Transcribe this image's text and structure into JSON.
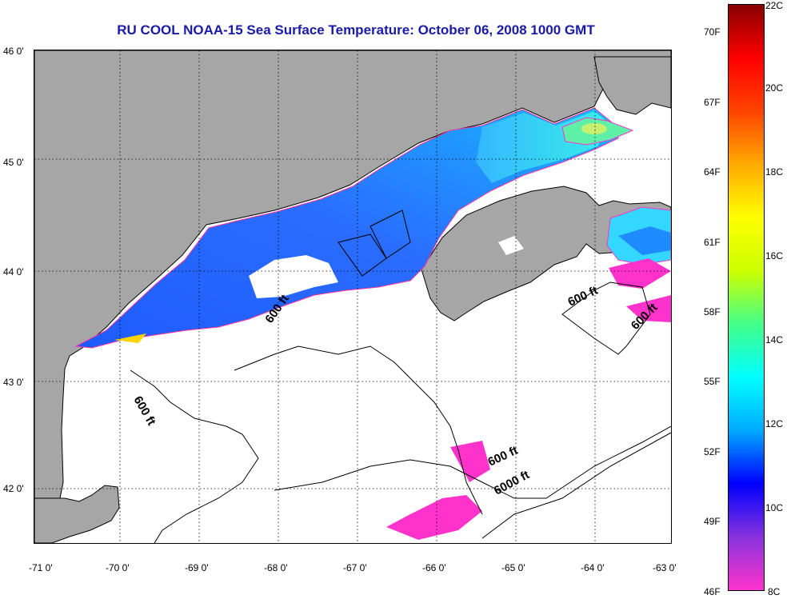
{
  "title": "RU COOL  NOAA-15  Sea Surface Temperature:  October 06, 2008 1000 GMT",
  "lat_labels": [
    "46 0'",
    "45 0'",
    "44 0'",
    "43 0'",
    "42 0'"
  ],
  "lon_labels": [
    "-71 0'",
    "-70 0'",
    "-69 0'",
    "-68 0'",
    "-67 0'",
    "-66 0'",
    "-65 0'",
    "-64 0'",
    "-63 0'"
  ],
  "colorbar": {
    "fahrenheit_labels": [
      "70F",
      "67F",
      "64F",
      "61F",
      "58F",
      "55F",
      "52F",
      "49F",
      "46F"
    ],
    "celsius_labels": [
      "22C",
      "20C",
      "18C",
      "16C",
      "14C",
      "12C",
      "10C",
      "8C"
    ],
    "range_c": [
      8,
      22
    ],
    "colors": [
      "#ff33cc",
      "#8833dd",
      "#0000ff",
      "#00aaff",
      "#00ffff",
      "#44ff88",
      "#ccff00",
      "#ffff00",
      "#ffaa00",
      "#ff4400",
      "#ff0000",
      "#880000"
    ]
  },
  "contour_labels": [
    "600 ft",
    "600 ft",
    "600 ft",
    "600 ft",
    "600 ft",
    "6000 ft"
  ],
  "colors": {
    "land": "#a6a6a6",
    "no_data": "#ffffff",
    "title": "#1a1aa8"
  }
}
